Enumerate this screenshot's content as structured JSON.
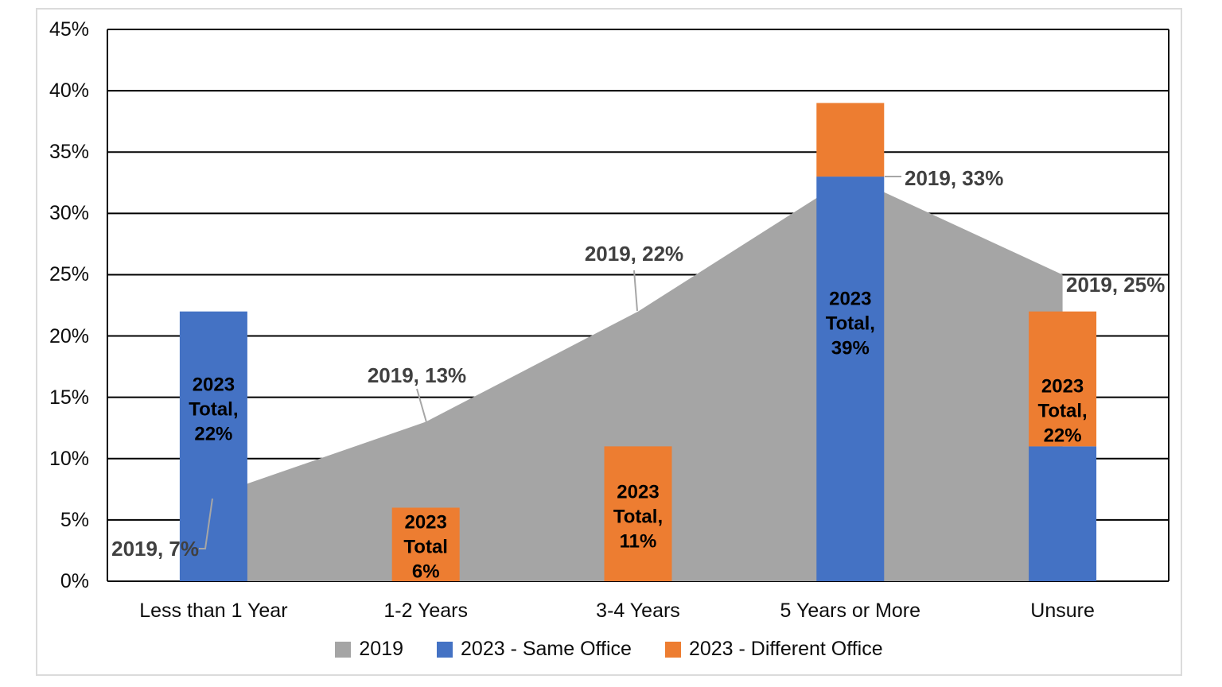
{
  "chart_data": {
    "type": "combo-area-plus-stacked-bar",
    "title": "",
    "categories": [
      "Less than 1 Year",
      "1-2 Years",
      "3-4 Years",
      "5 Years or More",
      "Unsure"
    ],
    "series": [
      {
        "name": "2019",
        "type": "area",
        "color": "#A5A5A5",
        "values": [
          7,
          13,
          22,
          33,
          25
        ]
      },
      {
        "name": "2023 - Same Office",
        "type": "stacked-bar",
        "color": "#4472C4",
        "values": [
          22,
          0,
          0,
          33,
          11
        ]
      },
      {
        "name": "2023 - Different Office",
        "type": "stacked-bar",
        "color": "#ED7D31",
        "values": [
          0,
          6,
          11,
          6,
          11
        ]
      }
    ],
    "totals_2023": [
      22,
      6,
      11,
      39,
      22
    ],
    "xlabel": "",
    "ylabel": "",
    "ylim": [
      0,
      45
    ],
    "ytick_step": 5,
    "yticks": [
      "0%",
      "5%",
      "10%",
      "15%",
      "20%",
      "25%",
      "30%",
      "35%",
      "40%",
      "45%"
    ],
    "grid": true,
    "legend_position": "bottom"
  },
  "labels": {
    "callouts": [
      "2019, 7%",
      "2019, 13%",
      "2019, 22%",
      "2019, 33%",
      "2019, 25%"
    ],
    "bar_totals": [
      [
        "2023",
        "Total,",
        "22%"
      ],
      [
        "2023",
        "Total",
        "6%"
      ],
      [
        "2023",
        "Total,",
        "11%"
      ],
      [
        "2023",
        "Total,",
        "39%"
      ],
      [
        "2023",
        "Total,",
        "22%"
      ]
    ]
  },
  "legend": {
    "items": [
      {
        "label": "2019",
        "color": "#A5A5A5"
      },
      {
        "label": "2023 - Same Office",
        "color": "#4472C4"
      },
      {
        "label": "2023 - Different Office",
        "color": "#ED7D31"
      }
    ]
  },
  "colors": {
    "area_gray": "#A5A5A5",
    "bar_blue": "#4472C4",
    "bar_orange": "#ED7D31",
    "gridline": "#000000",
    "leader_line": "#A6A6A6",
    "callout_text": "#404040",
    "frame_border": "#DBDBDB"
  }
}
